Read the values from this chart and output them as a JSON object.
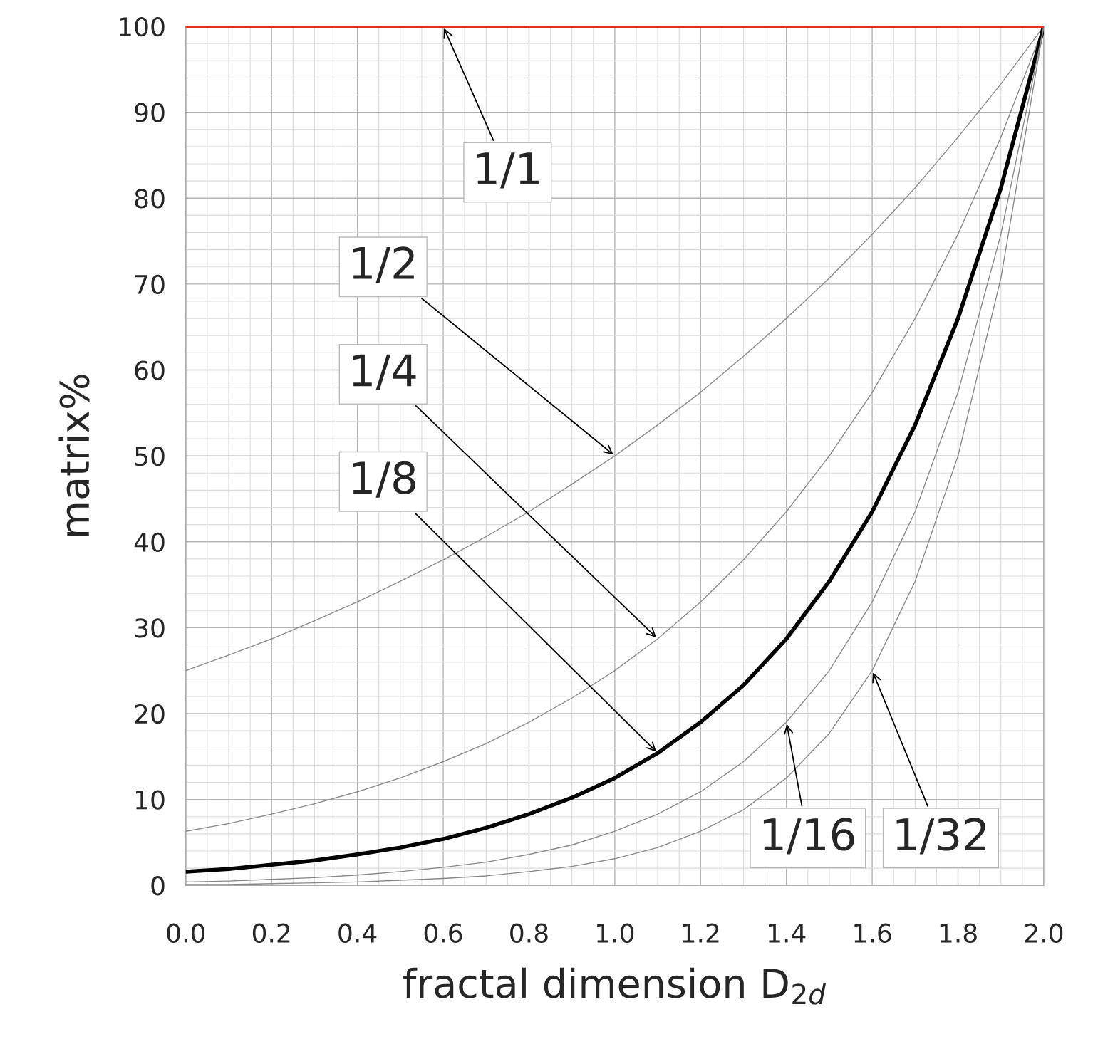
{
  "chart_data": {
    "type": "line",
    "xlabel": "fractal dimension D$_{2d}$",
    "ylabel": "matrix%",
    "x": [
      0,
      0.1,
      0.2,
      0.3,
      0.4,
      0.5,
      0.6,
      0.7,
      0.8,
      0.9,
      1.0,
      1.1,
      1.2,
      1.3,
      1.4,
      1.5,
      1.6,
      1.7,
      1.8,
      1.9,
      2.0
    ],
    "series": [
      {
        "color": "#e0301e",
        "values": [
          100,
          100,
          100,
          100,
          100,
          100,
          100,
          100,
          100,
          100,
          100,
          100,
          100,
          100,
          100,
          100,
          100,
          100,
          100,
          100,
          100
        ]
      },
      {
        "color": "#8a8a8a",
        "values": [
          25,
          26.8,
          28.7,
          30.8,
          33.0,
          35.4,
          37.9,
          40.6,
          43.5,
          46.7,
          50,
          53.6,
          57.4,
          61.6,
          66.0,
          70.7,
          75.8,
          81.2,
          87.1,
          93.3,
          100
        ]
      },
      {
        "color": "#8a8a8a",
        "values": [
          6.3,
          7.2,
          8.3,
          9.5,
          10.9,
          12.5,
          14.4,
          16.5,
          19.0,
          21.8,
          25,
          28.7,
          33.0,
          37.9,
          43.5,
          50,
          57.4,
          66.0,
          75.8,
          87.1,
          100
        ]
      },
      {
        "color": "#000000",
        "values": [
          1.6,
          1.9,
          2.4,
          2.9,
          3.6,
          4.4,
          5.4,
          6.7,
          8.3,
          10.2,
          12.5,
          15.4,
          19.0,
          23.3,
          28.7,
          35.4,
          43.5,
          53.6,
          66.0,
          81.2,
          100
        ]
      },
      {
        "color": "#8a8a8a",
        "values": [
          0.4,
          0.5,
          0.7,
          0.9,
          1.2,
          1.6,
          2.1,
          2.7,
          3.6,
          4.7,
          6.3,
          8.3,
          10.9,
          14.4,
          19.0,
          25,
          33.0,
          43.5,
          57.4,
          75.8,
          100
        ]
      },
      {
        "color": "#8a8a8a",
        "values": [
          0.1,
          0.1,
          0.2,
          0.3,
          0.4,
          0.6,
          0.8,
          1.1,
          1.6,
          2.2,
          3.1,
          4.4,
          6.3,
          8.8,
          12.5,
          17.7,
          25,
          35.4,
          50,
          70.7,
          100
        ]
      }
    ],
    "xlim": [
      0,
      2.0
    ],
    "xticks": [
      {
        "value": 0,
        "label": "0.0"
      },
      {
        "value": 0.2,
        "label": "0.2"
      },
      {
        "value": 0.4,
        "label": "0.4"
      },
      {
        "value": 0.6,
        "label": "0.6"
      },
      {
        "value": 0.8,
        "label": "0.8"
      },
      {
        "value": 1.0,
        "label": "1.0"
      },
      {
        "value": 1.2,
        "label": "1.2"
      },
      {
        "value": 1.4,
        "label": "1.4"
      },
      {
        "value": 1.6,
        "label": "1.6"
      },
      {
        "value": 1.8,
        "label": "1.8"
      },
      {
        "value": 2.0,
        "label": "2.0"
      }
    ],
    "ylim": [
      0,
      100
    ],
    "yticks": [
      0,
      10,
      20,
      30,
      40,
      50,
      60,
      70,
      80,
      90,
      100
    ],
    "grid": true,
    "legend": false,
    "marker": "none",
    "line_style": "solid",
    "annotations": [
      {
        "text": "1/1",
        "x": 0.6,
        "y": 100
      },
      {
        "text": "1/2",
        "x": 1.0,
        "y": 50
      },
      {
        "text": "1/4",
        "x": 1.1,
        "y": 28.7
      },
      {
        "text": "1/8",
        "x": 1.1,
        "y": 15.4
      },
      {
        "text": "1/16",
        "x": 1.4,
        "y": 19.0
      },
      {
        "text": "1/32",
        "x": 1.6,
        "y": 25
      }
    ]
  }
}
